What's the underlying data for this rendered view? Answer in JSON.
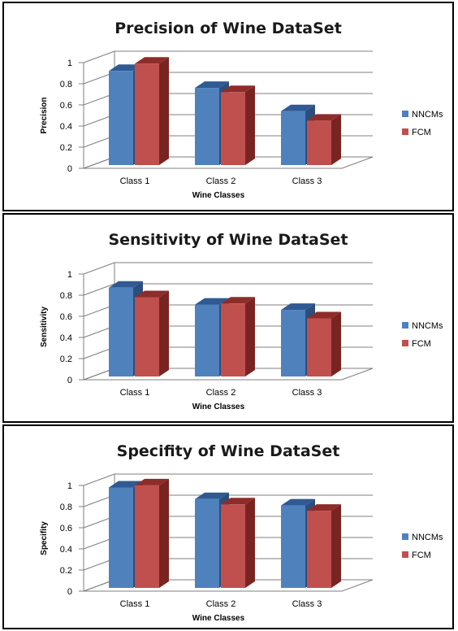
{
  "colors": {
    "NNCMs": {
      "front": "#4F81BD",
      "top": "#2F5A93",
      "side": "#2C4E7C"
    },
    "FCM": {
      "front": "#C0504D",
      "top": "#8E2C2A",
      "side": "#7A2422"
    }
  },
  "chart_data": [
    {
      "type": "bar",
      "title": "Precision of Wine DataSet",
      "xlabel": "Wine Classes",
      "ylabel": "Precision",
      "ylim": [
        0,
        1
      ],
      "ticks": [
        "0",
        "0.2",
        "0.4",
        "0.6",
        "0.8",
        "1"
      ],
      "categories": [
        "Class 1",
        "Class 2",
        "Class 3"
      ],
      "series": [
        {
          "name": "NNCMs",
          "values": [
            0.89,
            0.73,
            0.51
          ]
        },
        {
          "name": "FCM",
          "values": [
            0.96,
            0.69,
            0.42
          ]
        }
      ],
      "grid": true,
      "legend": "right"
    },
    {
      "type": "bar",
      "title": "Sensitivity of Wine DataSet",
      "xlabel": "Wine Classes",
      "ylabel": "Sensitivity",
      "ylim": [
        0,
        1
      ],
      "ticks": [
        "0",
        "0.2",
        "0.4",
        "0.6",
        "0.8",
        "1"
      ],
      "categories": [
        "Class 1",
        "Class 2",
        "Class 3"
      ],
      "series": [
        {
          "name": "NNCMs",
          "values": [
            0.84,
            0.68,
            0.63
          ]
        },
        {
          "name": "FCM",
          "values": [
            0.75,
            0.69,
            0.55
          ]
        }
      ],
      "grid": true,
      "legend": "right"
    },
    {
      "type": "bar",
      "title": "Specifity of Wine DataSet",
      "xlabel": "Wine Classes",
      "ylabel": "Specifity",
      "ylim": [
        0,
        1
      ],
      "ticks": [
        "0",
        "0.2",
        "0.4",
        "0.6",
        "0.8",
        "1"
      ],
      "categories": [
        "Class 1",
        "Class 2",
        "Class 3"
      ],
      "series": [
        {
          "name": "NNCMs",
          "values": [
            0.95,
            0.84,
            0.78
          ]
        },
        {
          "name": "FCM",
          "values": [
            0.97,
            0.79,
            0.73
          ]
        }
      ],
      "grid": true,
      "legend": "right"
    }
  ]
}
